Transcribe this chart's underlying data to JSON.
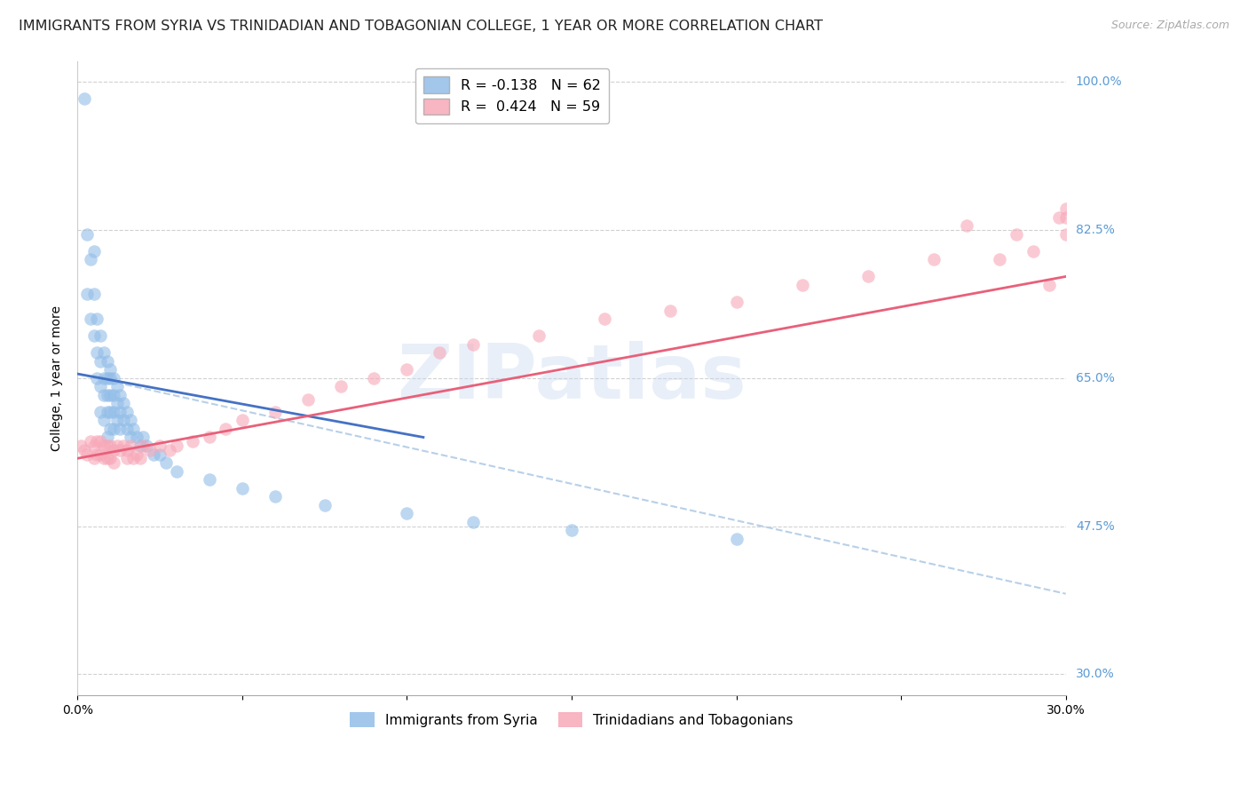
{
  "title": "IMMIGRANTS FROM SYRIA VS TRINIDADIAN AND TOBAGONIAN COLLEGE, 1 YEAR OR MORE CORRELATION CHART",
  "source": "Source: ZipAtlas.com",
  "ylabel": "College, 1 year or more",
  "xmin": 0.0,
  "xmax": 0.3,
  "ymin": 0.275,
  "ymax": 1.025,
  "yticks": [
    0.3,
    0.475,
    0.65,
    0.825,
    1.0
  ],
  "ytick_labels": [
    "30.0%",
    "47.5%",
    "65.0%",
    "82.5%",
    "100.0%"
  ],
  "xticks": [
    0.0,
    0.05,
    0.1,
    0.15,
    0.2,
    0.25,
    0.3
  ],
  "xtick_labels": [
    "0.0%",
    "",
    "",
    "",
    "",
    "",
    "30.0%"
  ],
  "legend_entries": [
    {
      "label": "R = -0.138   N = 62",
      "color": "#92bde8"
    },
    {
      "label": "R =  0.424   N = 59",
      "color": "#f7a8b8"
    }
  ],
  "legend_labels_bottom": [
    "Immigrants from Syria",
    "Trinidadians and Tobagonians"
  ],
  "watermark": "ZIPatlas",
  "blue_scatter": {
    "x": [
      0.002,
      0.003,
      0.003,
      0.004,
      0.004,
      0.005,
      0.005,
      0.005,
      0.006,
      0.006,
      0.006,
      0.007,
      0.007,
      0.007,
      0.007,
      0.008,
      0.008,
      0.008,
      0.008,
      0.009,
      0.009,
      0.009,
      0.009,
      0.009,
      0.01,
      0.01,
      0.01,
      0.01,
      0.01,
      0.011,
      0.011,
      0.011,
      0.011,
      0.012,
      0.012,
      0.012,
      0.013,
      0.013,
      0.013,
      0.014,
      0.014,
      0.015,
      0.015,
      0.016,
      0.016,
      0.017,
      0.018,
      0.019,
      0.02,
      0.021,
      0.023,
      0.025,
      0.027,
      0.03,
      0.04,
      0.05,
      0.06,
      0.075,
      0.1,
      0.12,
      0.15,
      0.2
    ],
    "y": [
      0.98,
      0.82,
      0.75,
      0.79,
      0.72,
      0.8,
      0.75,
      0.7,
      0.72,
      0.68,
      0.65,
      0.7,
      0.67,
      0.64,
      0.61,
      0.68,
      0.65,
      0.63,
      0.6,
      0.67,
      0.65,
      0.63,
      0.61,
      0.58,
      0.66,
      0.65,
      0.63,
      0.61,
      0.59,
      0.65,
      0.63,
      0.61,
      0.59,
      0.64,
      0.62,
      0.6,
      0.63,
      0.61,
      0.59,
      0.62,
      0.6,
      0.61,
      0.59,
      0.6,
      0.58,
      0.59,
      0.58,
      0.57,
      0.58,
      0.57,
      0.56,
      0.56,
      0.55,
      0.54,
      0.53,
      0.52,
      0.51,
      0.5,
      0.49,
      0.48,
      0.47,
      0.46
    ]
  },
  "pink_scatter": {
    "x": [
      0.001,
      0.002,
      0.003,
      0.004,
      0.005,
      0.005,
      0.006,
      0.006,
      0.007,
      0.007,
      0.008,
      0.008,
      0.009,
      0.009,
      0.01,
      0.01,
      0.011,
      0.011,
      0.012,
      0.013,
      0.014,
      0.015,
      0.015,
      0.016,
      0.017,
      0.018,
      0.019,
      0.02,
      0.022,
      0.025,
      0.028,
      0.03,
      0.035,
      0.04,
      0.045,
      0.05,
      0.06,
      0.07,
      0.08,
      0.09,
      0.1,
      0.11,
      0.12,
      0.14,
      0.16,
      0.18,
      0.2,
      0.22,
      0.24,
      0.26,
      0.27,
      0.28,
      0.285,
      0.29,
      0.295,
      0.298,
      0.3,
      0.3,
      0.3
    ],
    "y": [
      0.57,
      0.565,
      0.56,
      0.575,
      0.57,
      0.555,
      0.575,
      0.56,
      0.575,
      0.56,
      0.57,
      0.555,
      0.57,
      0.555,
      0.57,
      0.555,
      0.565,
      0.55,
      0.57,
      0.565,
      0.57,
      0.565,
      0.555,
      0.57,
      0.555,
      0.56,
      0.555,
      0.57,
      0.565,
      0.57,
      0.565,
      0.57,
      0.575,
      0.58,
      0.59,
      0.6,
      0.61,
      0.625,
      0.64,
      0.65,
      0.66,
      0.68,
      0.69,
      0.7,
      0.72,
      0.73,
      0.74,
      0.76,
      0.77,
      0.79,
      0.83,
      0.79,
      0.82,
      0.8,
      0.76,
      0.84,
      0.82,
      0.84,
      0.85
    ]
  },
  "blue_solid_line": {
    "x0": 0.0,
    "y0": 0.655,
    "x1": 0.105,
    "y1": 0.58
  },
  "pink_solid_line": {
    "x0": 0.0,
    "y0": 0.555,
    "x1": 0.3,
    "y1": 0.77
  },
  "blue_dashed_line": {
    "x0": 0.0,
    "y0": 0.655,
    "x1": 0.3,
    "y1": 0.395
  },
  "blue_color": "#92bde8",
  "pink_color": "#f7a8b8",
  "blue_line_color": "#4472c4",
  "pink_line_color": "#e8607a",
  "blue_dashed_color": "#b8d0e8",
  "grid_color": "#cccccc",
  "right_label_color": "#5b9bd5",
  "background_color": "#ffffff",
  "title_fontsize": 11.5,
  "axis_label_fontsize": 10,
  "tick_fontsize": 10
}
